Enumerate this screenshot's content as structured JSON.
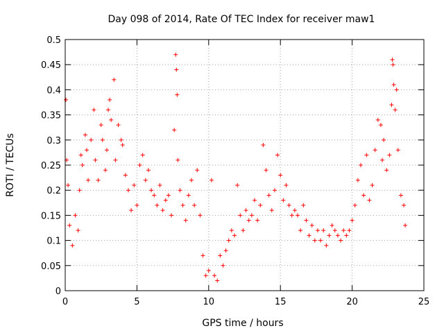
{
  "chart_data": {
    "type": "scatter",
    "title": "Day 098 of 2014, Rate Of TEC Index for receiver maw1",
    "xlabel": "GPS time / hours",
    "ylabel": "ROTI / TECUs",
    "xlim": [
      0,
      25
    ],
    "ylim": [
      0,
      0.5
    ],
    "xticks": [
      0,
      5,
      10,
      15,
      20,
      25
    ],
    "yticks": [
      0,
      0.05,
      0.1,
      0.15,
      0.2,
      0.25,
      0.3,
      0.35,
      0.4,
      0.45,
      0.5
    ],
    "xtick_labels": [
      "0",
      "5",
      "10",
      "15",
      "20",
      "25"
    ],
    "ytick_labels": [
      "0",
      "0.05",
      "0.1",
      "0.15",
      "0.2",
      "0.25",
      "0.3",
      "0.35",
      "0.4",
      "0.45",
      "0.5"
    ],
    "grid": true,
    "marker": "+",
    "color": "#ff0000",
    "series": [
      {
        "name": "ROTI",
        "points": [
          [
            0.05,
            0.38
          ],
          [
            0.1,
            0.26
          ],
          [
            0.2,
            0.21
          ],
          [
            0.3,
            0.13
          ],
          [
            0.5,
            0.09
          ],
          [
            0.7,
            0.15
          ],
          [
            0.9,
            0.12
          ],
          [
            1.0,
            0.2
          ],
          [
            1.1,
            0.27
          ],
          [
            1.2,
            0.25
          ],
          [
            1.4,
            0.31
          ],
          [
            1.5,
            0.28
          ],
          [
            1.6,
            0.22
          ],
          [
            1.8,
            0.3
          ],
          [
            2.0,
            0.36
          ],
          [
            2.1,
            0.26
          ],
          [
            2.3,
            0.22
          ],
          [
            2.5,
            0.33
          ],
          [
            2.6,
            0.3
          ],
          [
            2.8,
            0.24
          ],
          [
            2.9,
            0.28
          ],
          [
            3.0,
            0.36
          ],
          [
            3.1,
            0.38
          ],
          [
            3.2,
            0.34
          ],
          [
            3.4,
            0.42
          ],
          [
            3.5,
            0.26
          ],
          [
            3.7,
            0.33
          ],
          [
            3.9,
            0.3
          ],
          [
            4.0,
            0.29
          ],
          [
            4.2,
            0.23
          ],
          [
            4.4,
            0.2
          ],
          [
            4.6,
            0.16
          ],
          [
            4.8,
            0.21
          ],
          [
            5.0,
            0.17
          ],
          [
            5.2,
            0.25
          ],
          [
            5.4,
            0.27
          ],
          [
            5.6,
            0.22
          ],
          [
            5.8,
            0.24
          ],
          [
            6.0,
            0.2
          ],
          [
            6.2,
            0.19
          ],
          [
            6.4,
            0.17
          ],
          [
            6.6,
            0.21
          ],
          [
            6.8,
            0.16
          ],
          [
            7.0,
            0.18
          ],
          [
            7.2,
            0.19
          ],
          [
            7.4,
            0.15
          ],
          [
            7.6,
            0.32
          ],
          [
            7.7,
            0.47
          ],
          [
            7.75,
            0.44
          ],
          [
            7.8,
            0.39
          ],
          [
            7.85,
            0.26
          ],
          [
            8.0,
            0.2
          ],
          [
            8.2,
            0.17
          ],
          [
            8.4,
            0.14
          ],
          [
            8.6,
            0.19
          ],
          [
            8.8,
            0.22
          ],
          [
            9.0,
            0.17
          ],
          [
            9.2,
            0.24
          ],
          [
            9.4,
            0.15
          ],
          [
            9.6,
            0.07
          ],
          [
            9.8,
            0.03
          ],
          [
            10.0,
            0.04
          ],
          [
            10.2,
            0.22
          ],
          [
            10.4,
            0.03
          ],
          [
            10.6,
            0.02
          ],
          [
            10.8,
            0.07
          ],
          [
            11.0,
            0.05
          ],
          [
            11.2,
            0.08
          ],
          [
            11.4,
            0.1
          ],
          [
            11.6,
            0.12
          ],
          [
            11.8,
            0.11
          ],
          [
            12.0,
            0.21
          ],
          [
            12.2,
            0.15
          ],
          [
            12.4,
            0.12
          ],
          [
            12.6,
            0.16
          ],
          [
            12.8,
            0.14
          ],
          [
            13.0,
            0.15
          ],
          [
            13.2,
            0.18
          ],
          [
            13.4,
            0.14
          ],
          [
            13.6,
            0.17
          ],
          [
            13.8,
            0.29
          ],
          [
            14.0,
            0.24
          ],
          [
            14.2,
            0.19
          ],
          [
            14.4,
            0.16
          ],
          [
            14.6,
            0.2
          ],
          [
            14.8,
            0.27
          ],
          [
            15.0,
            0.23
          ],
          [
            15.2,
            0.18
          ],
          [
            15.4,
            0.21
          ],
          [
            15.6,
            0.17
          ],
          [
            15.8,
            0.15
          ],
          [
            16.0,
            0.16
          ],
          [
            16.2,
            0.15
          ],
          [
            16.4,
            0.12
          ],
          [
            16.6,
            0.17
          ],
          [
            16.8,
            0.14
          ],
          [
            17.0,
            0.11
          ],
          [
            17.2,
            0.13
          ],
          [
            17.4,
            0.1
          ],
          [
            17.6,
            0.12
          ],
          [
            17.8,
            0.1
          ],
          [
            18.0,
            0.12
          ],
          [
            18.2,
            0.09
          ],
          [
            18.4,
            0.11
          ],
          [
            18.6,
            0.13
          ],
          [
            18.8,
            0.12
          ],
          [
            19.0,
            0.11
          ],
          [
            19.2,
            0.1
          ],
          [
            19.4,
            0.12
          ],
          [
            19.6,
            0.11
          ],
          [
            19.8,
            0.12
          ],
          [
            20.0,
            0.14
          ],
          [
            20.2,
            0.17
          ],
          [
            20.4,
            0.22
          ],
          [
            20.6,
            0.25
          ],
          [
            20.8,
            0.19
          ],
          [
            21.0,
            0.27
          ],
          [
            21.2,
            0.18
          ],
          [
            21.4,
            0.21
          ],
          [
            21.6,
            0.28
          ],
          [
            21.8,
            0.34
          ],
          [
            22.0,
            0.33
          ],
          [
            22.1,
            0.26
          ],
          [
            22.2,
            0.3
          ],
          [
            22.4,
            0.24
          ],
          [
            22.6,
            0.27
          ],
          [
            22.75,
            0.37
          ],
          [
            22.8,
            0.46
          ],
          [
            22.85,
            0.45
          ],
          [
            22.9,
            0.41
          ],
          [
            23.0,
            0.36
          ],
          [
            23.1,
            0.4
          ],
          [
            23.2,
            0.28
          ],
          [
            23.4,
            0.19
          ],
          [
            23.6,
            0.17
          ],
          [
            23.7,
            0.13
          ]
        ]
      }
    ]
  }
}
